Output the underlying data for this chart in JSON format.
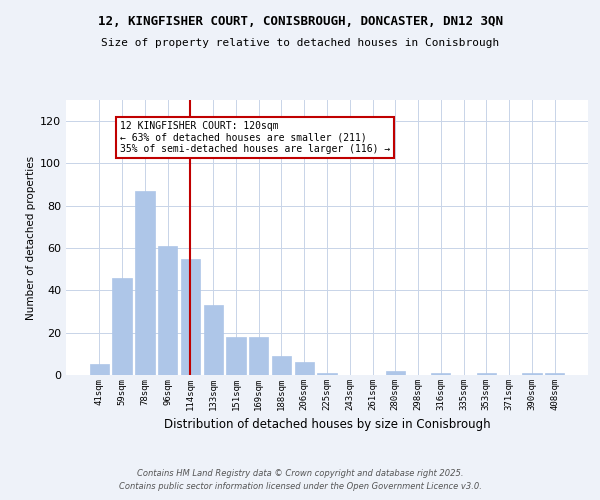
{
  "title_line1": "12, KINGFISHER COURT, CONISBROUGH, DONCASTER, DN12 3QN",
  "title_line2": "Size of property relative to detached houses in Conisbrough",
  "xlabel": "Distribution of detached houses by size in Conisbrough",
  "ylabel": "Number of detached properties",
  "categories": [
    "41sqm",
    "59sqm",
    "78sqm",
    "96sqm",
    "114sqm",
    "133sqm",
    "151sqm",
    "169sqm",
    "188sqm",
    "206sqm",
    "225sqm",
    "243sqm",
    "261sqm",
    "280sqm",
    "298sqm",
    "316sqm",
    "335sqm",
    "353sqm",
    "371sqm",
    "390sqm",
    "408sqm"
  ],
  "values": [
    5,
    46,
    87,
    61,
    55,
    33,
    18,
    18,
    9,
    6,
    1,
    0,
    0,
    2,
    0,
    1,
    0,
    1,
    0,
    1,
    1
  ],
  "bar_color": "#aec6e8",
  "bar_edgecolor": "#aec6e8",
  "highlight_color": "#c00000",
  "highlight_index": 4,
  "ylim": [
    0,
    130
  ],
  "yticks": [
    0,
    20,
    40,
    60,
    80,
    100,
    120
  ],
  "annotation_text": "12 KINGFISHER COURT: 120sqm\n← 63% of detached houses are smaller (211)\n35% of semi-detached houses are larger (116) →",
  "footer_line1": "Contains HM Land Registry data © Crown copyright and database right 2025.",
  "footer_line2": "Contains public sector information licensed under the Open Government Licence v3.0.",
  "bg_color": "#eef2f9",
  "plot_bg_color": "#ffffff",
  "grid_color": "#c8d4e8"
}
